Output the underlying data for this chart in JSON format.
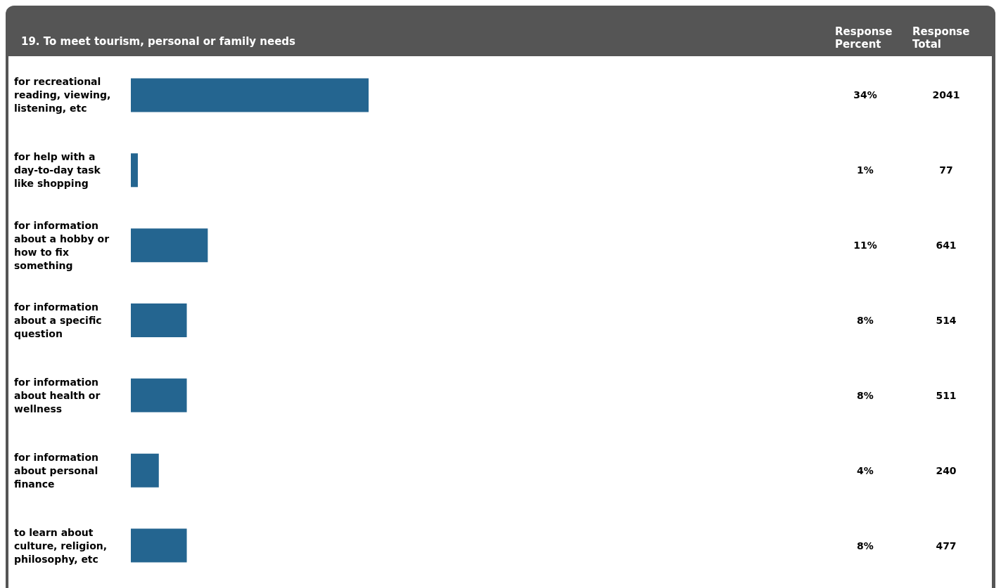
{
  "chart_data": {
    "type": "bar",
    "orientation": "horizontal",
    "title": "19. To meet tourism, personal or family needs",
    "categories": [
      "for recreational reading, viewing, listening, etc",
      "for help with a day-to-day task like shopping",
      "for information about a hobby or how to fix something",
      "for information about a specific question",
      "for information about health or wellness",
      "for information about personal finance",
      "to learn about culture, religion, philosophy, etc"
    ],
    "values": [
      34,
      1,
      11,
      8,
      8,
      4,
      8
    ],
    "value_labels": [
      "34%",
      "1%",
      "11%",
      "8%",
      "8%",
      "4%",
      "8%"
    ],
    "color": "#246590",
    "annotations": [
      "Response Percent",
      "Response Total",
      "2041",
      "77",
      "641",
      "514",
      "511",
      "240",
      "477"
    ]
  }
}
